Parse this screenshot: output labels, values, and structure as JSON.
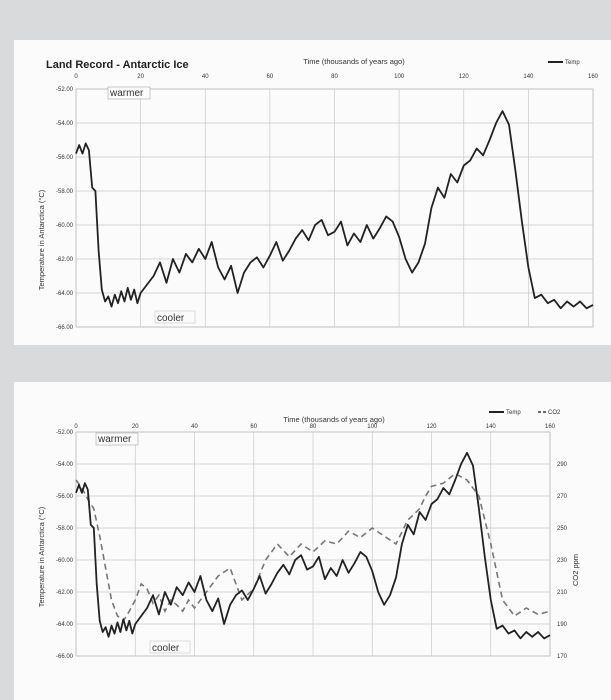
{
  "chart_data": [
    {
      "type": "line",
      "title": "Land Record - Antarctic Ice",
      "xlabel": "Time (thousands of years ago)",
      "ylabel": "Temperature in Antarctica (°C)",
      "xlim": [
        0,
        160
      ],
      "ylim": [
        -66,
        -52
      ],
      "x_ticks": [
        0,
        20,
        40,
        60,
        80,
        100,
        120,
        140,
        160
      ],
      "y_ticks": [
        "-52.00",
        "-54.00",
        "-56.00",
        "-58.00",
        "-60.00",
        "-62.00",
        "-64.00",
        "-66.00"
      ],
      "legend": "top-right",
      "annotations": [
        "warmer",
        "cooler"
      ],
      "series": [
        {
          "name": "Temp",
          "color": "#222222",
          "x": [
            0,
            1,
            2,
            3,
            4,
            5,
            6,
            7,
            8,
            9,
            10,
            11,
            12,
            13,
            14,
            15,
            16,
            17,
            18,
            19,
            20,
            22,
            24,
            26,
            28,
            30,
            32,
            34,
            36,
            38,
            40,
            42,
            44,
            46,
            48,
            50,
            52,
            54,
            56,
            58,
            60,
            62,
            64,
            66,
            68,
            70,
            72,
            74,
            76,
            78,
            80,
            82,
            84,
            86,
            88,
            90,
            92,
            94,
            96,
            98,
            100,
            102,
            104,
            106,
            108,
            110,
            112,
            114,
            116,
            118,
            120,
            122,
            124,
            126,
            128,
            130,
            132,
            134,
            136,
            138,
            140,
            142,
            144,
            146,
            148,
            150,
            152,
            154,
            156,
            158,
            160
          ],
          "y": [
            -55.8,
            -55.3,
            -55.8,
            -55.2,
            -55.6,
            -57.8,
            -58.0,
            -61.5,
            -63.8,
            -64.5,
            -64.2,
            -64.8,
            -64.1,
            -64.6,
            -63.9,
            -64.5,
            -63.7,
            -64.4,
            -63.8,
            -64.6,
            -64.0,
            -63.5,
            -63.0,
            -62.2,
            -63.4,
            -62.0,
            -62.8,
            -61.7,
            -62.2,
            -61.4,
            -62.0,
            -61.0,
            -62.5,
            -63.2,
            -62.4,
            -64.0,
            -62.8,
            -62.2,
            -61.9,
            -62.5,
            -61.8,
            -61.0,
            -62.1,
            -61.5,
            -60.8,
            -60.3,
            -60.9,
            -60.0,
            -59.7,
            -60.6,
            -60.4,
            -59.8,
            -61.2,
            -60.5,
            -61.0,
            -60.0,
            -60.8,
            -60.2,
            -59.5,
            -59.8,
            -60.7,
            -62.0,
            -62.8,
            -62.2,
            -61.1,
            -59.0,
            -57.8,
            -58.4,
            -57.0,
            -57.5,
            -56.5,
            -56.2,
            -55.5,
            -55.9,
            -55.0,
            -54.0,
            -53.3,
            -54.1,
            -56.8,
            -59.8,
            -62.5,
            -64.3,
            -64.1,
            -64.6,
            -64.4,
            -64.9,
            -64.5,
            -64.8,
            -64.5,
            -64.9,
            -64.7
          ]
        }
      ]
    },
    {
      "type": "line",
      "title": "",
      "xlabel": "Time (thousands of years ago)",
      "ylabel": "Temperature in Antarctica (°C)",
      "y2label": "CO2 ppm",
      "xlim": [
        0,
        160
      ],
      "ylim": [
        -66,
        -52
      ],
      "y2lim": [
        170,
        310
      ],
      "x_ticks": [
        0,
        20,
        40,
        60,
        80,
        100,
        120,
        140,
        160
      ],
      "y_ticks": [
        "-52.00",
        "-54.00",
        "-56.00",
        "-58.00",
        "-60.00",
        "-62.00",
        "-64.00",
        "-66.00"
      ],
      "y2_ticks": [
        290,
        270,
        250,
        230,
        210,
        190,
        170
      ],
      "legend": "top-right",
      "annotations": [
        "warmer",
        "cooler"
      ],
      "series": [
        {
          "name": "Temp",
          "color": "#222222",
          "x": [
            0,
            1,
            2,
            3,
            4,
            5,
            6,
            7,
            8,
            9,
            10,
            11,
            12,
            13,
            14,
            15,
            16,
            17,
            18,
            19,
            20,
            22,
            24,
            26,
            28,
            30,
            32,
            34,
            36,
            38,
            40,
            42,
            44,
            46,
            48,
            50,
            52,
            54,
            56,
            58,
            60,
            62,
            64,
            66,
            68,
            70,
            72,
            74,
            76,
            78,
            80,
            82,
            84,
            86,
            88,
            90,
            92,
            94,
            96,
            98,
            100,
            102,
            104,
            106,
            108,
            110,
            112,
            114,
            116,
            118,
            120,
            122,
            124,
            126,
            128,
            130,
            132,
            134,
            136,
            138,
            140,
            142,
            144,
            146,
            148,
            150,
            152,
            154,
            156,
            158,
            160
          ],
          "y": [
            -55.8,
            -55.3,
            -55.8,
            -55.2,
            -55.6,
            -57.8,
            -58.0,
            -61.5,
            -63.8,
            -64.5,
            -64.2,
            -64.8,
            -64.1,
            -64.6,
            -63.9,
            -64.5,
            -63.7,
            -64.4,
            -63.8,
            -64.6,
            -64.0,
            -63.5,
            -63.0,
            -62.2,
            -63.4,
            -62.0,
            -62.8,
            -61.7,
            -62.2,
            -61.4,
            -62.0,
            -61.0,
            -62.5,
            -63.2,
            -62.4,
            -64.0,
            -62.8,
            -62.2,
            -61.9,
            -62.5,
            -61.8,
            -61.0,
            -62.1,
            -61.5,
            -60.8,
            -60.3,
            -60.9,
            -60.0,
            -59.7,
            -60.6,
            -60.4,
            -59.8,
            -61.2,
            -60.5,
            -61.0,
            -60.0,
            -60.8,
            -60.2,
            -59.5,
            -59.8,
            -60.7,
            -62.0,
            -62.8,
            -62.2,
            -61.1,
            -59.0,
            -57.8,
            -58.4,
            -57.0,
            -57.5,
            -56.5,
            -56.2,
            -55.5,
            -55.9,
            -55.0,
            -54.0,
            -53.3,
            -54.1,
            -56.8,
            -59.8,
            -62.5,
            -64.3,
            -64.1,
            -64.6,
            -64.4,
            -64.9,
            -64.5,
            -64.8,
            -64.5,
            -64.9,
            -64.7
          ]
        },
        {
          "name": "CO2",
          "color": "#666666",
          "dashed": true,
          "axis": "right",
          "x": [
            0,
            2,
            4,
            6,
            8,
            10,
            12,
            14,
            16,
            18,
            20,
            22,
            24,
            26,
            28,
            30,
            32,
            34,
            36,
            38,
            40,
            44,
            48,
            52,
            56,
            60,
            64,
            68,
            72,
            76,
            80,
            84,
            88,
            92,
            96,
            100,
            104,
            108,
            112,
            116,
            118,
            120,
            124,
            128,
            132,
            136,
            140,
            144,
            148,
            152,
            156,
            160
          ],
          "y": [
            280,
            275,
            268,
            262,
            245,
            225,
            205,
            195,
            192,
            198,
            205,
            215,
            212,
            203,
            208,
            198,
            205,
            202,
            198,
            205,
            200,
            210,
            220,
            225,
            205,
            212,
            230,
            240,
            232,
            240,
            235,
            242,
            240,
            248,
            244,
            250,
            245,
            240,
            255,
            262,
            270,
            276,
            278,
            284,
            280,
            270,
            240,
            205,
            195,
            200,
            196,
            198
          ]
        }
      ]
    }
  ]
}
